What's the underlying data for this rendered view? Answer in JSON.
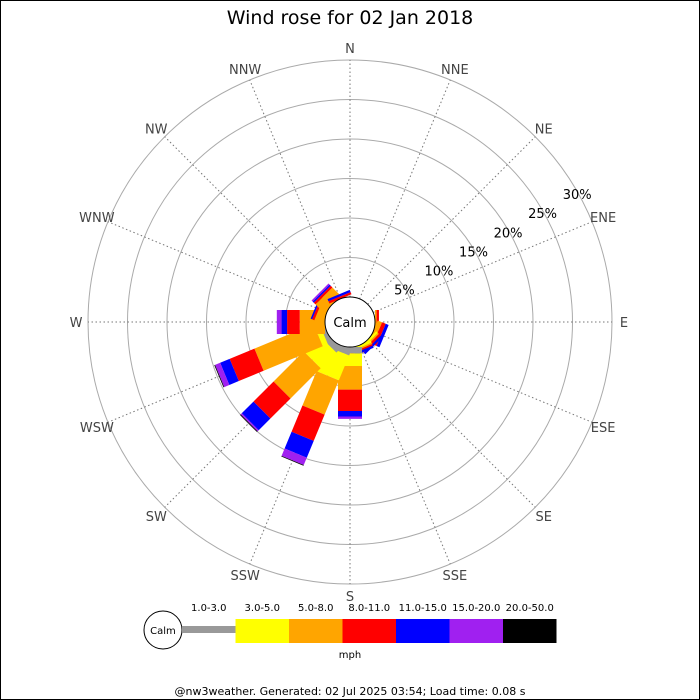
{
  "chart_data": {
    "type": "windrose",
    "title": "Wind rose for 02 Jan 2018",
    "directions": [
      "N",
      "NNE",
      "NE",
      "ENE",
      "E",
      "ESE",
      "SE",
      "SSE",
      "S",
      "SSW",
      "SW",
      "WSW",
      "W",
      "WNW",
      "NW",
      "NNW"
    ],
    "ring_labels": [
      "5%",
      "10%",
      "15%",
      "20%",
      "25%",
      "30%"
    ],
    "rlim": [
      0,
      30
    ],
    "calm_label": "Calm",
    "units": "mph",
    "bins": [
      {
        "label": "1.0-3.0",
        "color": "#999999"
      },
      {
        "label": "3.0-5.0",
        "color": "#ffff00"
      },
      {
        "label": "5.0-8.0",
        "color": "#ffa500"
      },
      {
        "label": "8.0-11.0",
        "color": "#ff0000"
      },
      {
        "label": "11.0-15.0",
        "color": "#0000ff"
      },
      {
        "label": "15.0-20.0",
        "color": "#a020f0"
      },
      {
        "label": "20.0-50.0",
        "color": "#000000"
      }
    ],
    "series": [
      {
        "direction": "N",
        "values": [
          0,
          0,
          0,
          0,
          0,
          0,
          0
        ]
      },
      {
        "direction": "NNE",
        "values": [
          0,
          0,
          0,
          0,
          0,
          0,
          0
        ]
      },
      {
        "direction": "NE",
        "values": [
          0,
          0,
          0,
          0,
          0,
          0,
          0
        ]
      },
      {
        "direction": "ENE",
        "values": [
          0,
          0,
          0,
          0,
          0,
          0,
          0
        ]
      },
      {
        "direction": "E",
        "values": [
          0,
          0,
          0.2,
          0.3,
          0,
          0,
          0
        ]
      },
      {
        "direction": "ESE",
        "values": [
          0,
          0,
          0.6,
          0.5,
          0.4,
          0,
          0
        ]
      },
      {
        "direction": "SE",
        "values": [
          0,
          0.3,
          0.2,
          0.3,
          0.3,
          0,
          0
        ]
      },
      {
        "direction": "SSE",
        "values": [
          0,
          0.3,
          0.2,
          0.2,
          0.3,
          0,
          0
        ]
      },
      {
        "direction": "S",
        "values": [
          0.8,
          1.6,
          3.0,
          2.7,
          0.7,
          0.3,
          0
        ]
      },
      {
        "direction": "SSW",
        "values": [
          0.8,
          3.4,
          4.7,
          3.6,
          2.3,
          1.0,
          0.1
        ]
      },
      {
        "direction": "SW",
        "values": [
          0.8,
          2.8,
          5.4,
          3.6,
          2.1,
          0.2,
          0.1
        ]
      },
      {
        "direction": "WSW",
        "values": [
          0.5,
          0.7,
          8.1,
          3.4,
          1.3,
          0.7,
          0.1
        ]
      },
      {
        "direction": "W",
        "values": [
          0,
          0,
          3.2,
          1.6,
          0.7,
          0.6,
          0
        ]
      },
      {
        "direction": "WNW",
        "values": [
          0,
          0,
          1.1,
          0.3,
          0.2,
          0,
          0
        ]
      },
      {
        "direction": "NW",
        "values": [
          0,
          0,
          1.5,
          0.3,
          0.2,
          0.2,
          0
        ]
      },
      {
        "direction": "NNW",
        "values": [
          0,
          0,
          0,
          0.3,
          0.3,
          0,
          0
        ]
      }
    ]
  },
  "footer": "@nw3weather. Generated: 02 Jul 2025 03:54; Load time: 0.08 s"
}
